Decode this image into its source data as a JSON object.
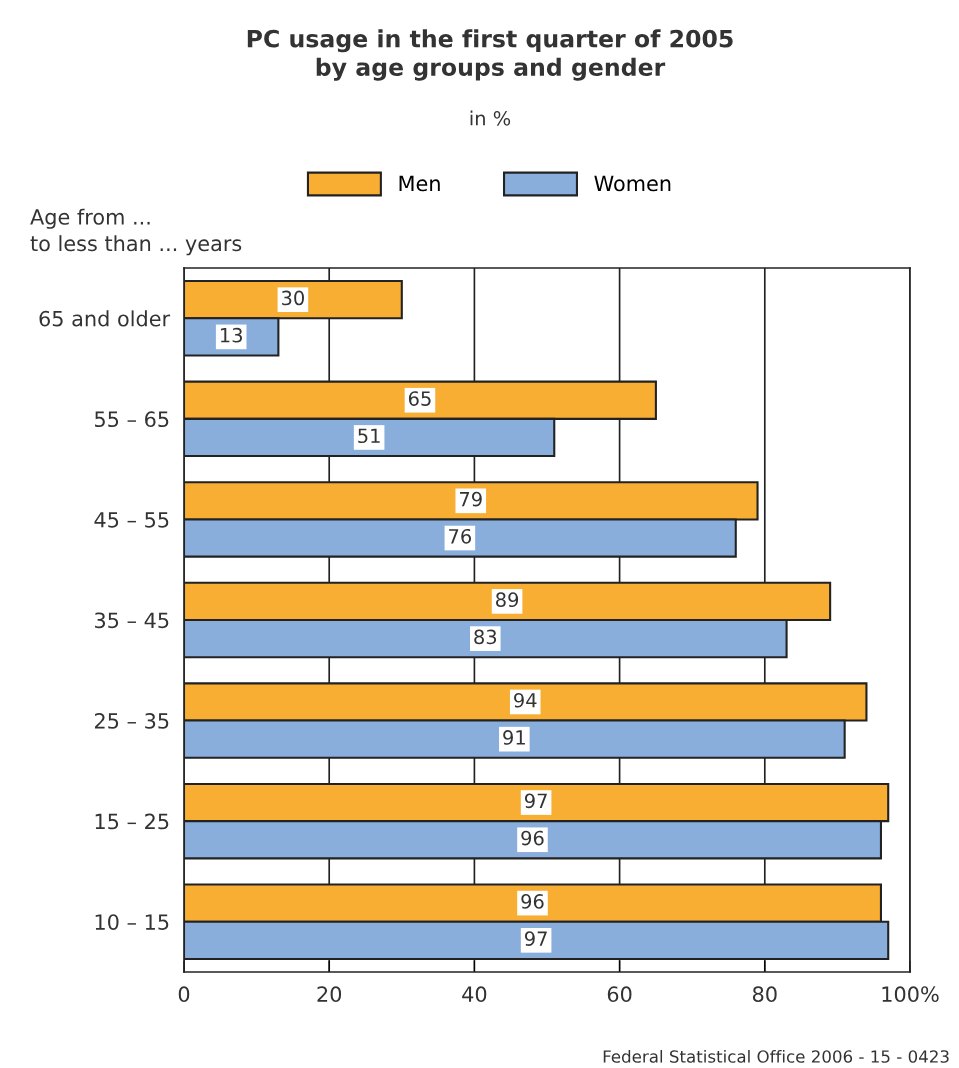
{
  "chart_data": {
    "type": "bar",
    "orientation": "horizontal",
    "title": "PC usage in the first quarter of 2005\nby age groups and gender",
    "subtitle": "in %",
    "ylabel": "Age from ...\nto less than ... years",
    "categories": [
      "65 and older",
      "55 – 65",
      "45 – 55",
      "35 – 45",
      "25 – 35",
      "15 – 25",
      "10 – 15"
    ],
    "series": [
      {
        "name": "Men",
        "color": "#f8ae32",
        "values": [
          30,
          65,
          79,
          89,
          94,
          97,
          96
        ]
      },
      {
        "name": "Women",
        "color": "#8aaedc",
        "values": [
          13,
          51,
          76,
          83,
          91,
          96,
          97
        ]
      }
    ],
    "xlim": [
      0,
      100
    ],
    "xticks": [
      0,
      20,
      40,
      60,
      80,
      {
        "value": 100,
        "label": "100%"
      }
    ],
    "grid": "x",
    "legend": "top",
    "data_labels": true,
    "annotations": [
      "Federal Statistical Office 2006 - 15 - 0423"
    ]
  }
}
